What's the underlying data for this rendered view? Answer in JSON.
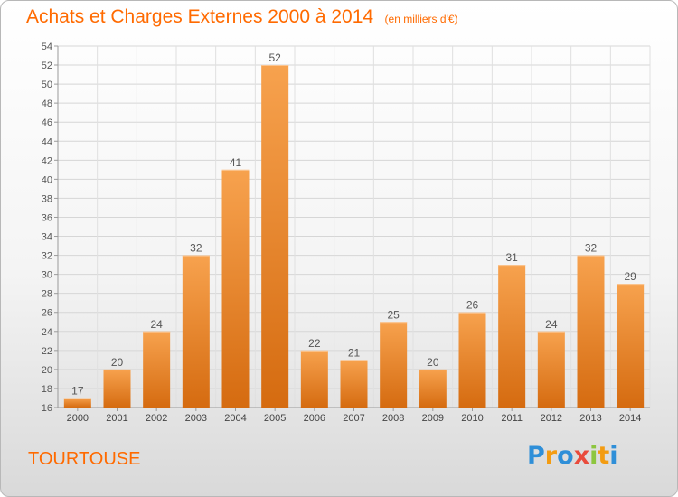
{
  "header": {
    "title": "Achats et Charges Externes 2000 à 2014",
    "subtitle": "(en milliers d'€)"
  },
  "footer": {
    "place": "TOURTOUSE",
    "logo_letters": [
      "P",
      "r",
      "o",
      "x",
      "i",
      "t",
      "i"
    ],
    "logo_colors": [
      "#2f8fd8",
      "#f39c12",
      "#2f8fd8",
      "#e94b3c",
      "#8dc63f",
      "#f39c12",
      "#2f8fd8"
    ]
  },
  "chart_data": {
    "type": "bar",
    "title": "Achats et Charges Externes 2000 à 2014",
    "subtitle": "(en milliers d'€)",
    "categories": [
      "2000",
      "2001",
      "2002",
      "2003",
      "2004",
      "2005",
      "2006",
      "2007",
      "2008",
      "2009",
      "2010",
      "2011",
      "2012",
      "2013",
      "2014"
    ],
    "values": [
      17,
      20,
      24,
      32,
      41,
      52,
      22,
      21,
      25,
      20,
      26,
      31,
      24,
      32,
      29
    ],
    "data_labels": [
      "17",
      "20",
      "24",
      "32",
      "41",
      "52",
      "22",
      "21",
      "25",
      "20",
      "26",
      "31",
      "24",
      "32",
      "29"
    ],
    "ylim": [
      16,
      54
    ],
    "yticks": [
      16,
      18,
      20,
      22,
      24,
      26,
      28,
      30,
      32,
      34,
      36,
      38,
      40,
      42,
      44,
      46,
      48,
      50,
      52,
      54
    ],
    "ytick_labels": [
      "16",
      "18",
      "20",
      "22",
      "24",
      "26",
      "28",
      "30",
      "32",
      "34",
      "36",
      "38",
      "40",
      "42",
      "44",
      "46",
      "48",
      "50",
      "52",
      "54"
    ],
    "grid": true,
    "bar_color_light": "#f7a24e",
    "bar_color_dark": "#d56b10"
  }
}
